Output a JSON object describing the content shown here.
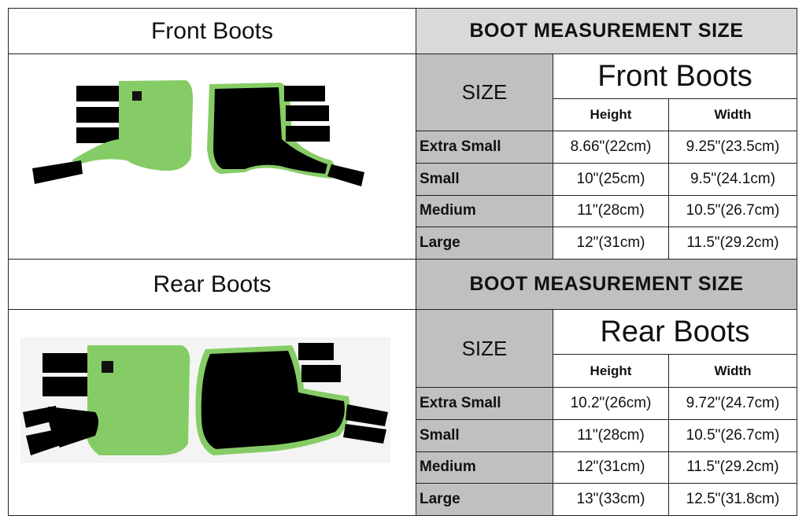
{
  "front": {
    "section_title": "Front Boots",
    "table_header": "BOOT MEASUREMENT SIZE",
    "size_label": "SIZE",
    "table_title": "Front Boots",
    "columns": [
      "Height",
      "Width"
    ],
    "rows": [
      {
        "size": "Extra Small",
        "height": "8.66\"(22cm)",
        "width": "9.25\"(23.5cm)"
      },
      {
        "size": "Small",
        "height": "10\"(25cm)",
        "width": "9.5\"(24.1cm)"
      },
      {
        "size": "Medium",
        "height": "11\"(28cm)",
        "width": "10.5\"(26.7cm)"
      },
      {
        "size": "Large",
        "height": "12\"(31cm)",
        "width": "11.5\"(29.2cm)"
      }
    ]
  },
  "rear": {
    "section_title": "Rear Boots",
    "table_header": "BOOT MEASUREMENT SIZE",
    "size_label": "SIZE",
    "table_title": "Rear Boots",
    "columns": [
      "Height",
      "Width"
    ],
    "rows": [
      {
        "size": "Extra Small",
        "height": "10.2\"(26cm)",
        "width": "9.72\"(24.7cm)"
      },
      {
        "size": "Small",
        "height": "11\"(28cm)",
        "width": "10.5\"(26.7cm)"
      },
      {
        "size": "Medium",
        "height": "12\"(31cm)",
        "width": "11.5\"(29.2cm)"
      },
      {
        "size": "Large",
        "height": "13\"(33cm)",
        "width": "12.5\"(31.8cm)"
      }
    ]
  },
  "colors": {
    "boot_green": "#86cc66",
    "header_light": "#d9d9d9",
    "header_gray": "#c0c0c0"
  }
}
